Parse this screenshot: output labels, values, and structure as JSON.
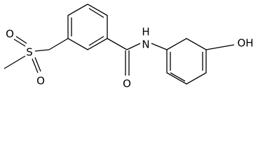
{
  "molecule": {
    "atoms": [
      {
        "label": "S"
      },
      {
        "label": "O"
      },
      {
        "label": "O"
      },
      {
        "label": "O"
      },
      {
        "label": "H"
      },
      {
        "label": "N"
      },
      {
        "label": "OH"
      }
    ]
  }
}
